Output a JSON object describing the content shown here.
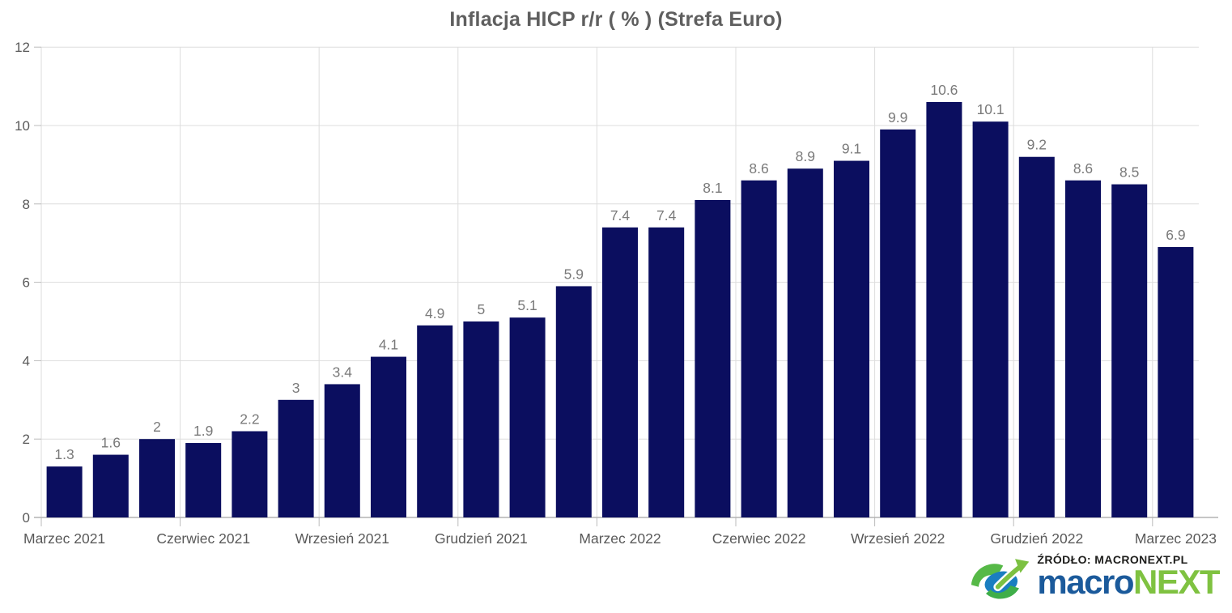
{
  "chart_data": {
    "type": "bar",
    "title": "Inflacja HICP r/r ( % ) (Strefa Euro)",
    "values": [
      1.3,
      1.6,
      2,
      1.9,
      2.2,
      3,
      3.4,
      4.1,
      4.9,
      5,
      5.1,
      5.9,
      7.4,
      7.4,
      8.1,
      8.6,
      8.9,
      9.1,
      9.9,
      10.6,
      10.1,
      9.2,
      8.6,
      8.5,
      6.9
    ],
    "x_tick_labels": [
      {
        "bar_index": 0,
        "label": "Marzec 2021"
      },
      {
        "bar_index": 3,
        "label": "Czerwiec 2021"
      },
      {
        "bar_index": 6,
        "label": "Wrzesień 2021"
      },
      {
        "bar_index": 9,
        "label": "Grudzień 2021"
      },
      {
        "bar_index": 12,
        "label": "Marzec 2022"
      },
      {
        "bar_index": 15,
        "label": "Czerwiec 2022"
      },
      {
        "bar_index": 18,
        "label": "Wrzesień 2022"
      },
      {
        "bar_index": 21,
        "label": "Grudzień 2022"
      },
      {
        "bar_index": 24,
        "label": "Marzec 2023"
      }
    ],
    "y_ticks": [
      0,
      2,
      4,
      6,
      8,
      10,
      12
    ],
    "ylim": [
      0,
      12
    ],
    "grid": true,
    "data_labels": true,
    "legend": "none",
    "bar_color": "#0b0e5f",
    "value_label_color": "#7a7a7a",
    "axis_label_color": "#595959",
    "title_color": "#5f5f5f",
    "gridline_color": "#dddddd",
    "axis_line_color": "#b3b3b3",
    "tick_color": "#bbbbbb"
  },
  "footer": {
    "source_line": "ŹRÓDŁO: MACRONEXT.PL",
    "source_color": "#1d1d1b",
    "wordmark_left": "macro",
    "wordmark_right": "NEXT",
    "wordmark_left_color": "#1b5a9b",
    "wordmark_right_color": "#7fc241",
    "logo_blue": "#1a7ec0",
    "logo_green_dark": "#3fae49",
    "logo_green_light": "#7cc142"
  }
}
